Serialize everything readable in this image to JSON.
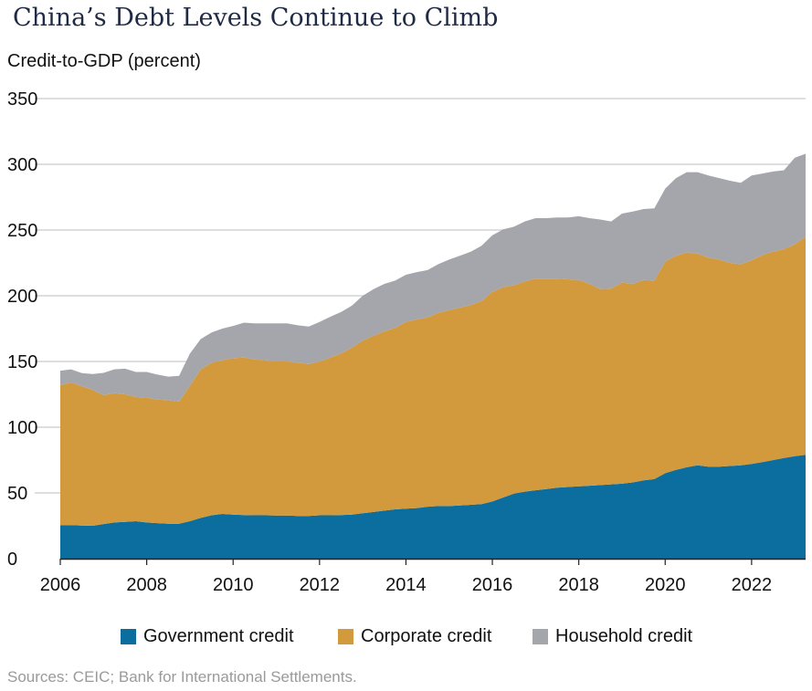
{
  "title": "China’s Debt Levels Continue to Climb",
  "source": "Sources: CEIC; Bank for International Settlements.",
  "legend": {
    "government": "Government credit",
    "corporate": "Corporate credit",
    "household": "Household credit"
  },
  "chart_data": {
    "type": "area",
    "stacked": true,
    "title": "China’s Debt Levels Continue to Climb",
    "ylabel": "Credit-to-GDP (percent)",
    "xlabel": "",
    "ylim": [
      0,
      350
    ],
    "yticks": [
      0,
      50,
      100,
      150,
      200,
      250,
      300,
      350
    ],
    "xlim": [
      2006,
      2023.25
    ],
    "xticks": [
      2006,
      2008,
      2010,
      2012,
      2014,
      2016,
      2018,
      2020,
      2022
    ],
    "grid": "horizontal",
    "legend_position": "bottom",
    "colors": {
      "government": "#0b6e9e",
      "corporate": "#d39a3d",
      "household": "#a4a6ab",
      "gridline": "#d4d4d4"
    },
    "x": [
      2006,
      2006.25,
      2006.5,
      2006.75,
      2007,
      2007.25,
      2007.5,
      2007.75,
      2008,
      2008.25,
      2008.5,
      2008.75,
      2009,
      2009.25,
      2009.5,
      2009.75,
      2010,
      2010.25,
      2010.5,
      2010.75,
      2011,
      2011.25,
      2011.5,
      2011.75,
      2012,
      2012.25,
      2012.5,
      2012.75,
      2013,
      2013.25,
      2013.5,
      2013.75,
      2014,
      2014.25,
      2014.5,
      2014.75,
      2015,
      2015.25,
      2015.5,
      2015.75,
      2016,
      2016.25,
      2016.5,
      2016.75,
      2017,
      2017.25,
      2017.5,
      2017.75,
      2018,
      2018.25,
      2018.5,
      2018.75,
      2019,
      2019.25,
      2019.5,
      2019.75,
      2020,
      2020.25,
      2020.5,
      2020.75,
      2021,
      2021.25,
      2021.5,
      2021.75,
      2022,
      2022.25,
      2022.5,
      2022.75,
      2023,
      2023.25
    ],
    "series": [
      {
        "name": "Government credit",
        "key": "government",
        "values": [
          25.5,
          25.5,
          25.2,
          25,
          26.3,
          27.5,
          28,
          28.5,
          27.5,
          27,
          26.5,
          26.5,
          28.5,
          31,
          33,
          34,
          33.5,
          33.2,
          33,
          33,
          32.8,
          32.8,
          32.5,
          32.5,
          33,
          33,
          33.2,
          33.5,
          34.5,
          35.5,
          36.5,
          37.5,
          38,
          38.5,
          39.5,
          40,
          40,
          40.5,
          41,
          41.5,
          43.5,
          46.5,
          49.5,
          51,
          52,
          53,
          54,
          54.5,
          55,
          55.5,
          56,
          56.5,
          57,
          58,
          59.5,
          60.5,
          65,
          67.5,
          69.5,
          71,
          70,
          70,
          70.5,
          71,
          72,
          73.5,
          75,
          76.5,
          78,
          79
        ]
      },
      {
        "name": "Corporate credit",
        "key": "corporate",
        "values": [
          106.5,
          108.5,
          106,
          103.5,
          98,
          98.5,
          97,
          94.5,
          95,
          94,
          94,
          93,
          103,
          113,
          116,
          117,
          119,
          119.8,
          118.5,
          118,
          117.2,
          117.2,
          116.5,
          115.5,
          117,
          120,
          123,
          127,
          131.5,
          134,
          136.5,
          138,
          142,
          143.5,
          144,
          147,
          149,
          150.5,
          152,
          154.5,
          159.5,
          160,
          158.5,
          160,
          161,
          160,
          159,
          158,
          157,
          153.5,
          149,
          149,
          153,
          151,
          152.5,
          151,
          161,
          163,
          163.5,
          161,
          159,
          157.5,
          154.5,
          153,
          155,
          157.5,
          158.5,
          159,
          161,
          166
        ]
      },
      {
        "name": "Household credit",
        "key": "household",
        "values": [
          11,
          10,
          10,
          12,
          17,
          18,
          19.5,
          19,
          19.5,
          19,
          18,
          19.5,
          24.5,
          23,
          23,
          24,
          24.5,
          26.5,
          27.5,
          28,
          29,
          29,
          28.5,
          28.5,
          30,
          31,
          31.5,
          32,
          34,
          35.5,
          36,
          36,
          36,
          36,
          36,
          37,
          38.5,
          39.5,
          40.5,
          42,
          43,
          44,
          44.5,
          45.5,
          46,
          46,
          46.5,
          47,
          48.5,
          50,
          53,
          51,
          52.5,
          55,
          54,
          55,
          55.5,
          59,
          61,
          62,
          62.5,
          62,
          62.5,
          62,
          64.5,
          62,
          61,
          60,
          66,
          63
        ]
      }
    ]
  }
}
